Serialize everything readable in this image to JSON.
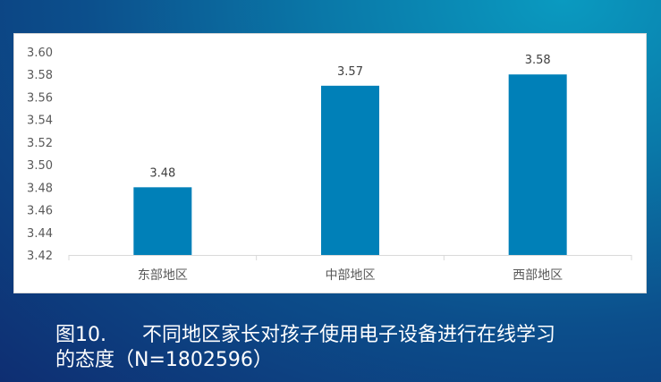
{
  "chart_data": {
    "type": "bar",
    "categories": [
      "东部地区",
      "中部地区",
      "西部地区"
    ],
    "values": [
      3.48,
      3.57,
      3.58
    ],
    "data_labels": [
      "3.48",
      "3.57",
      "3.58"
    ],
    "ylim": [
      3.42,
      3.6
    ],
    "yticks": [
      "3.42",
      "3.44",
      "3.46",
      "3.48",
      "3.50",
      "3.52",
      "3.54",
      "3.56",
      "3.58",
      "3.60"
    ],
    "grid": false,
    "bar_color": "#0080b8"
  },
  "caption": {
    "figure_number": "图10.",
    "line1": "不同地区家长对孩子使用电子设备进行在线学习",
    "line2": "的态度（N=1802596）"
  }
}
